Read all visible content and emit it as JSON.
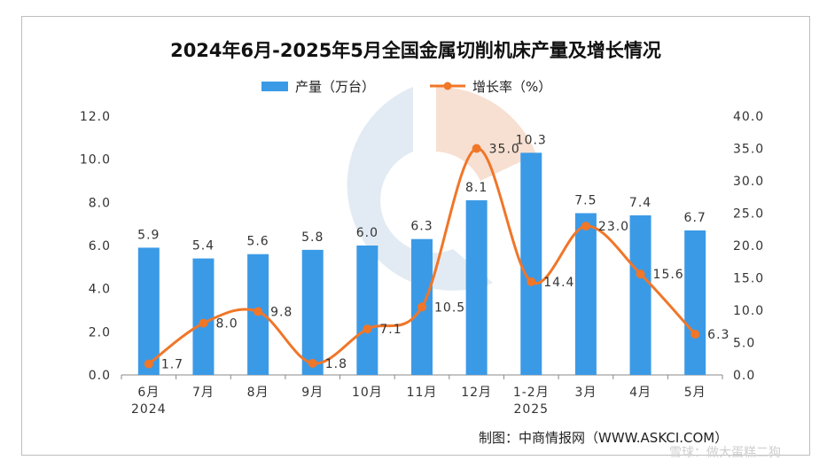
{
  "chart_data": {
    "type": "bar",
    "title": "2024年6月-2025年5月全国金属切削机床产量及增长情况",
    "categories": [
      "6月",
      "7月",
      "8月",
      "9月",
      "10月",
      "11月",
      "12月",
      "1-2月",
      "3月",
      "4月",
      "5月"
    ],
    "category_sublabels": [
      "2024",
      "",
      "",
      "",
      "",
      "",
      "",
      "2025",
      "",
      "",
      ""
    ],
    "series": [
      {
        "name": "产量（万台）",
        "type": "bar",
        "axis": "left",
        "color": "#3b9ae6",
        "values": [
          5.9,
          5.4,
          5.6,
          5.8,
          6.0,
          6.3,
          8.1,
          10.3,
          7.5,
          7.4,
          6.7
        ]
      },
      {
        "name": "增长率（%）",
        "type": "line",
        "axis": "right",
        "color": "#f07628",
        "values": [
          1.7,
          8.0,
          9.8,
          1.8,
          7.1,
          10.5,
          35.0,
          14.4,
          23.0,
          15.6,
          6.3
        ]
      }
    ],
    "y_left": {
      "min": 0,
      "max": 12,
      "step": 2,
      "ticks": [
        "0.0",
        "2.0",
        "4.0",
        "6.0",
        "8.0",
        "10.0",
        "12.0"
      ]
    },
    "y_right": {
      "min": 0,
      "max": 40,
      "step": 5,
      "ticks": [
        "0.0",
        "5.0",
        "10.0",
        "15.0",
        "20.0",
        "25.0",
        "30.0",
        "35.0",
        "40.0"
      ]
    },
    "bar_labels": [
      "5.9",
      "5.4",
      "5.6",
      "5.8",
      "6.0",
      "6.3",
      "8.1",
      "10.3",
      "7.5",
      "7.4",
      "6.7"
    ],
    "line_labels": [
      "1.7",
      "8.0",
      "9.8",
      "1.8",
      "7.1",
      "10.5",
      "35.0",
      "14.4",
      "23.0",
      "15.6",
      "6.3"
    ],
    "legend": "top-center",
    "grid": false
  },
  "source": "制图：中商情报网（WWW.ASKCI.COM）",
  "watermark": "雪球：做大蛋糕二狗"
}
